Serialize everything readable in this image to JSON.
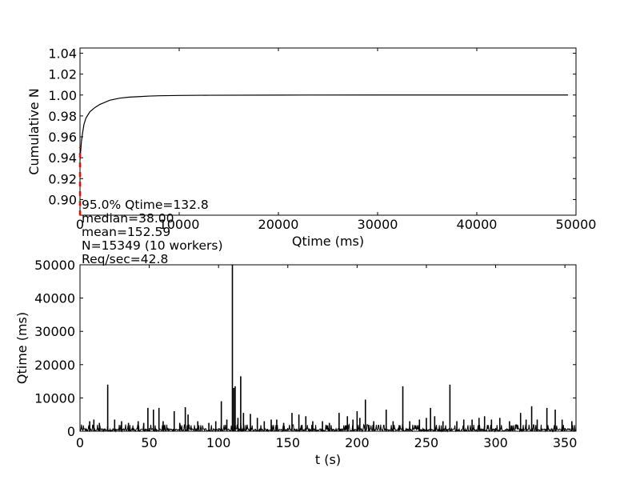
{
  "chart_data": [
    {
      "type": "line",
      "xlabel": "Qtime (ms)",
      "ylabel": "Cumulative N",
      "xlim": [
        0,
        50000
      ],
      "ylim": [
        0.885,
        1.045
      ],
      "xticks": [
        0,
        10000,
        20000,
        30000,
        40000,
        50000
      ],
      "yticks": [
        0.9,
        0.92,
        0.94,
        0.96,
        0.98,
        1.0,
        1.02,
        1.04
      ],
      "grid": false,
      "series": [
        {
          "color": "#000000",
          "x": [
            0,
            80,
            150,
            250,
            400,
            600,
            1000,
            1500,
            2000,
            3000,
            4000,
            5000,
            6000,
            7000,
            8000,
            10000,
            13000,
            20000,
            30000,
            40000,
            49200
          ],
          "y": [
            0.938,
            0.948,
            0.956,
            0.963,
            0.972,
            0.978,
            0.984,
            0.988,
            0.991,
            0.995,
            0.997,
            0.998,
            0.9985,
            0.999,
            0.9993,
            0.9996,
            0.9998,
            0.99995,
            1.0,
            1.0,
            1.0
          ]
        },
        {
          "color": "#ff0000",
          "style": "dashed",
          "x": [
            0,
            0
          ],
          "y": [
            0.885,
            0.95
          ]
        }
      ],
      "annotations": [
        "95.0% Qtime=132.8",
        "median=38.00",
        "mean=152.59",
        "N=15349 (10 workers)",
        "Req/sec=42.8"
      ]
    },
    {
      "type": "line",
      "xlabel": "t (s)",
      "ylabel": "Qtime (ms)",
      "xlim": [
        0,
        358
      ],
      "ylim": [
        0,
        50000
      ],
      "xticks": [
        0,
        50,
        100,
        150,
        200,
        250,
        300,
        350
      ],
      "yticks": [
        0,
        10000,
        20000,
        30000,
        40000,
        50000
      ],
      "grid": false,
      "series": [
        {
          "color": "#000000",
          "spikes_x": [
            7,
            10,
            14,
            20,
            25,
            30,
            35,
            42,
            46,
            49,
            53,
            57,
            60,
            68,
            72,
            76,
            78,
            85,
            93,
            98,
            102,
            106,
            110,
            111,
            112,
            114,
            116,
            118,
            123,
            128,
            133,
            138,
            142,
            147,
            153,
            158,
            163,
            168,
            175,
            180,
            187,
            193,
            197,
            200,
            202,
            206,
            212,
            221,
            226,
            233,
            238,
            245,
            250,
            253,
            256,
            262,
            267,
            272,
            277,
            283,
            288,
            292,
            297,
            303,
            310,
            318,
            322,
            326,
            330,
            337,
            343,
            348,
            355
          ],
          "spikes_y": [
            3000,
            3500,
            2500,
            14000,
            3500,
            3000,
            2500,
            3000,
            2500,
            7000,
            6500,
            7000,
            3000,
            6000,
            2500,
            7200,
            5000,
            3000,
            2500,
            3000,
            9000,
            3500,
            50000,
            13000,
            13500,
            4000,
            16500,
            5500,
            5200,
            4000,
            3000,
            3500,
            3500,
            2500,
            5500,
            5000,
            4500,
            3000,
            3000,
            2500,
            5500,
            4500,
            3500,
            6000,
            4000,
            9500,
            3000,
            6500,
            3000,
            13500,
            3000,
            3500,
            4000,
            7000,
            4500,
            3000,
            14000,
            3000,
            3500,
            3500,
            4000,
            4500,
            3500,
            4000,
            3000,
            5500,
            3500,
            7500,
            3500,
            7000,
            6500,
            3500,
            3000
          ]
        }
      ]
    }
  ]
}
